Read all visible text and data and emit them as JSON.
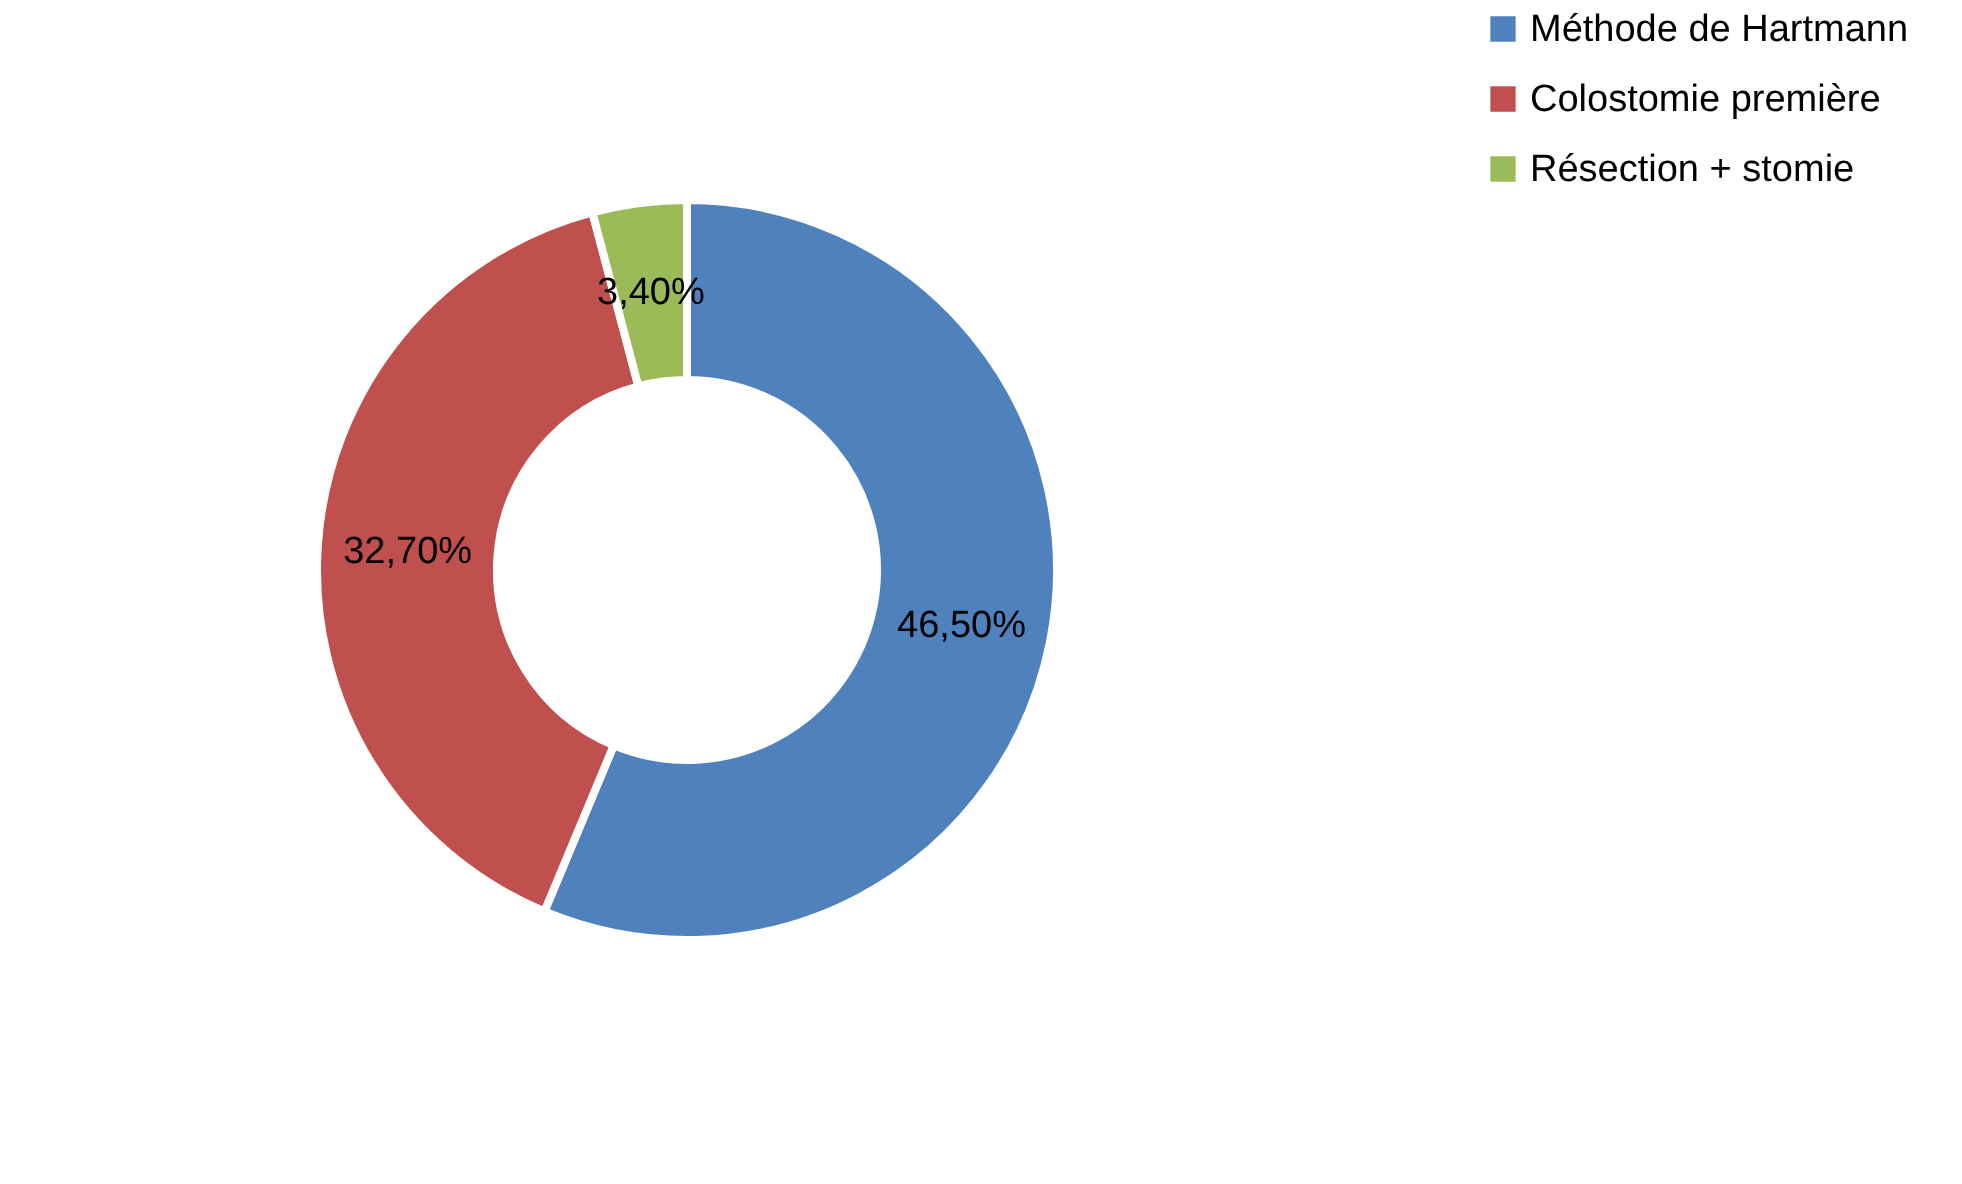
{
  "chart_data": {
    "type": "donut",
    "categories": [
      "Méthode de Hartmann",
      "Colostomie première",
      "Résection + stomie"
    ],
    "values": [
      46.5,
      32.7,
      3.4
    ],
    "colors": [
      "#4f81bd",
      "#c0504d",
      "#9bbb59"
    ],
    "value_labels": [
      "46,50%",
      "32,70%",
      "3,40%"
    ],
    "legend": "right"
  }
}
